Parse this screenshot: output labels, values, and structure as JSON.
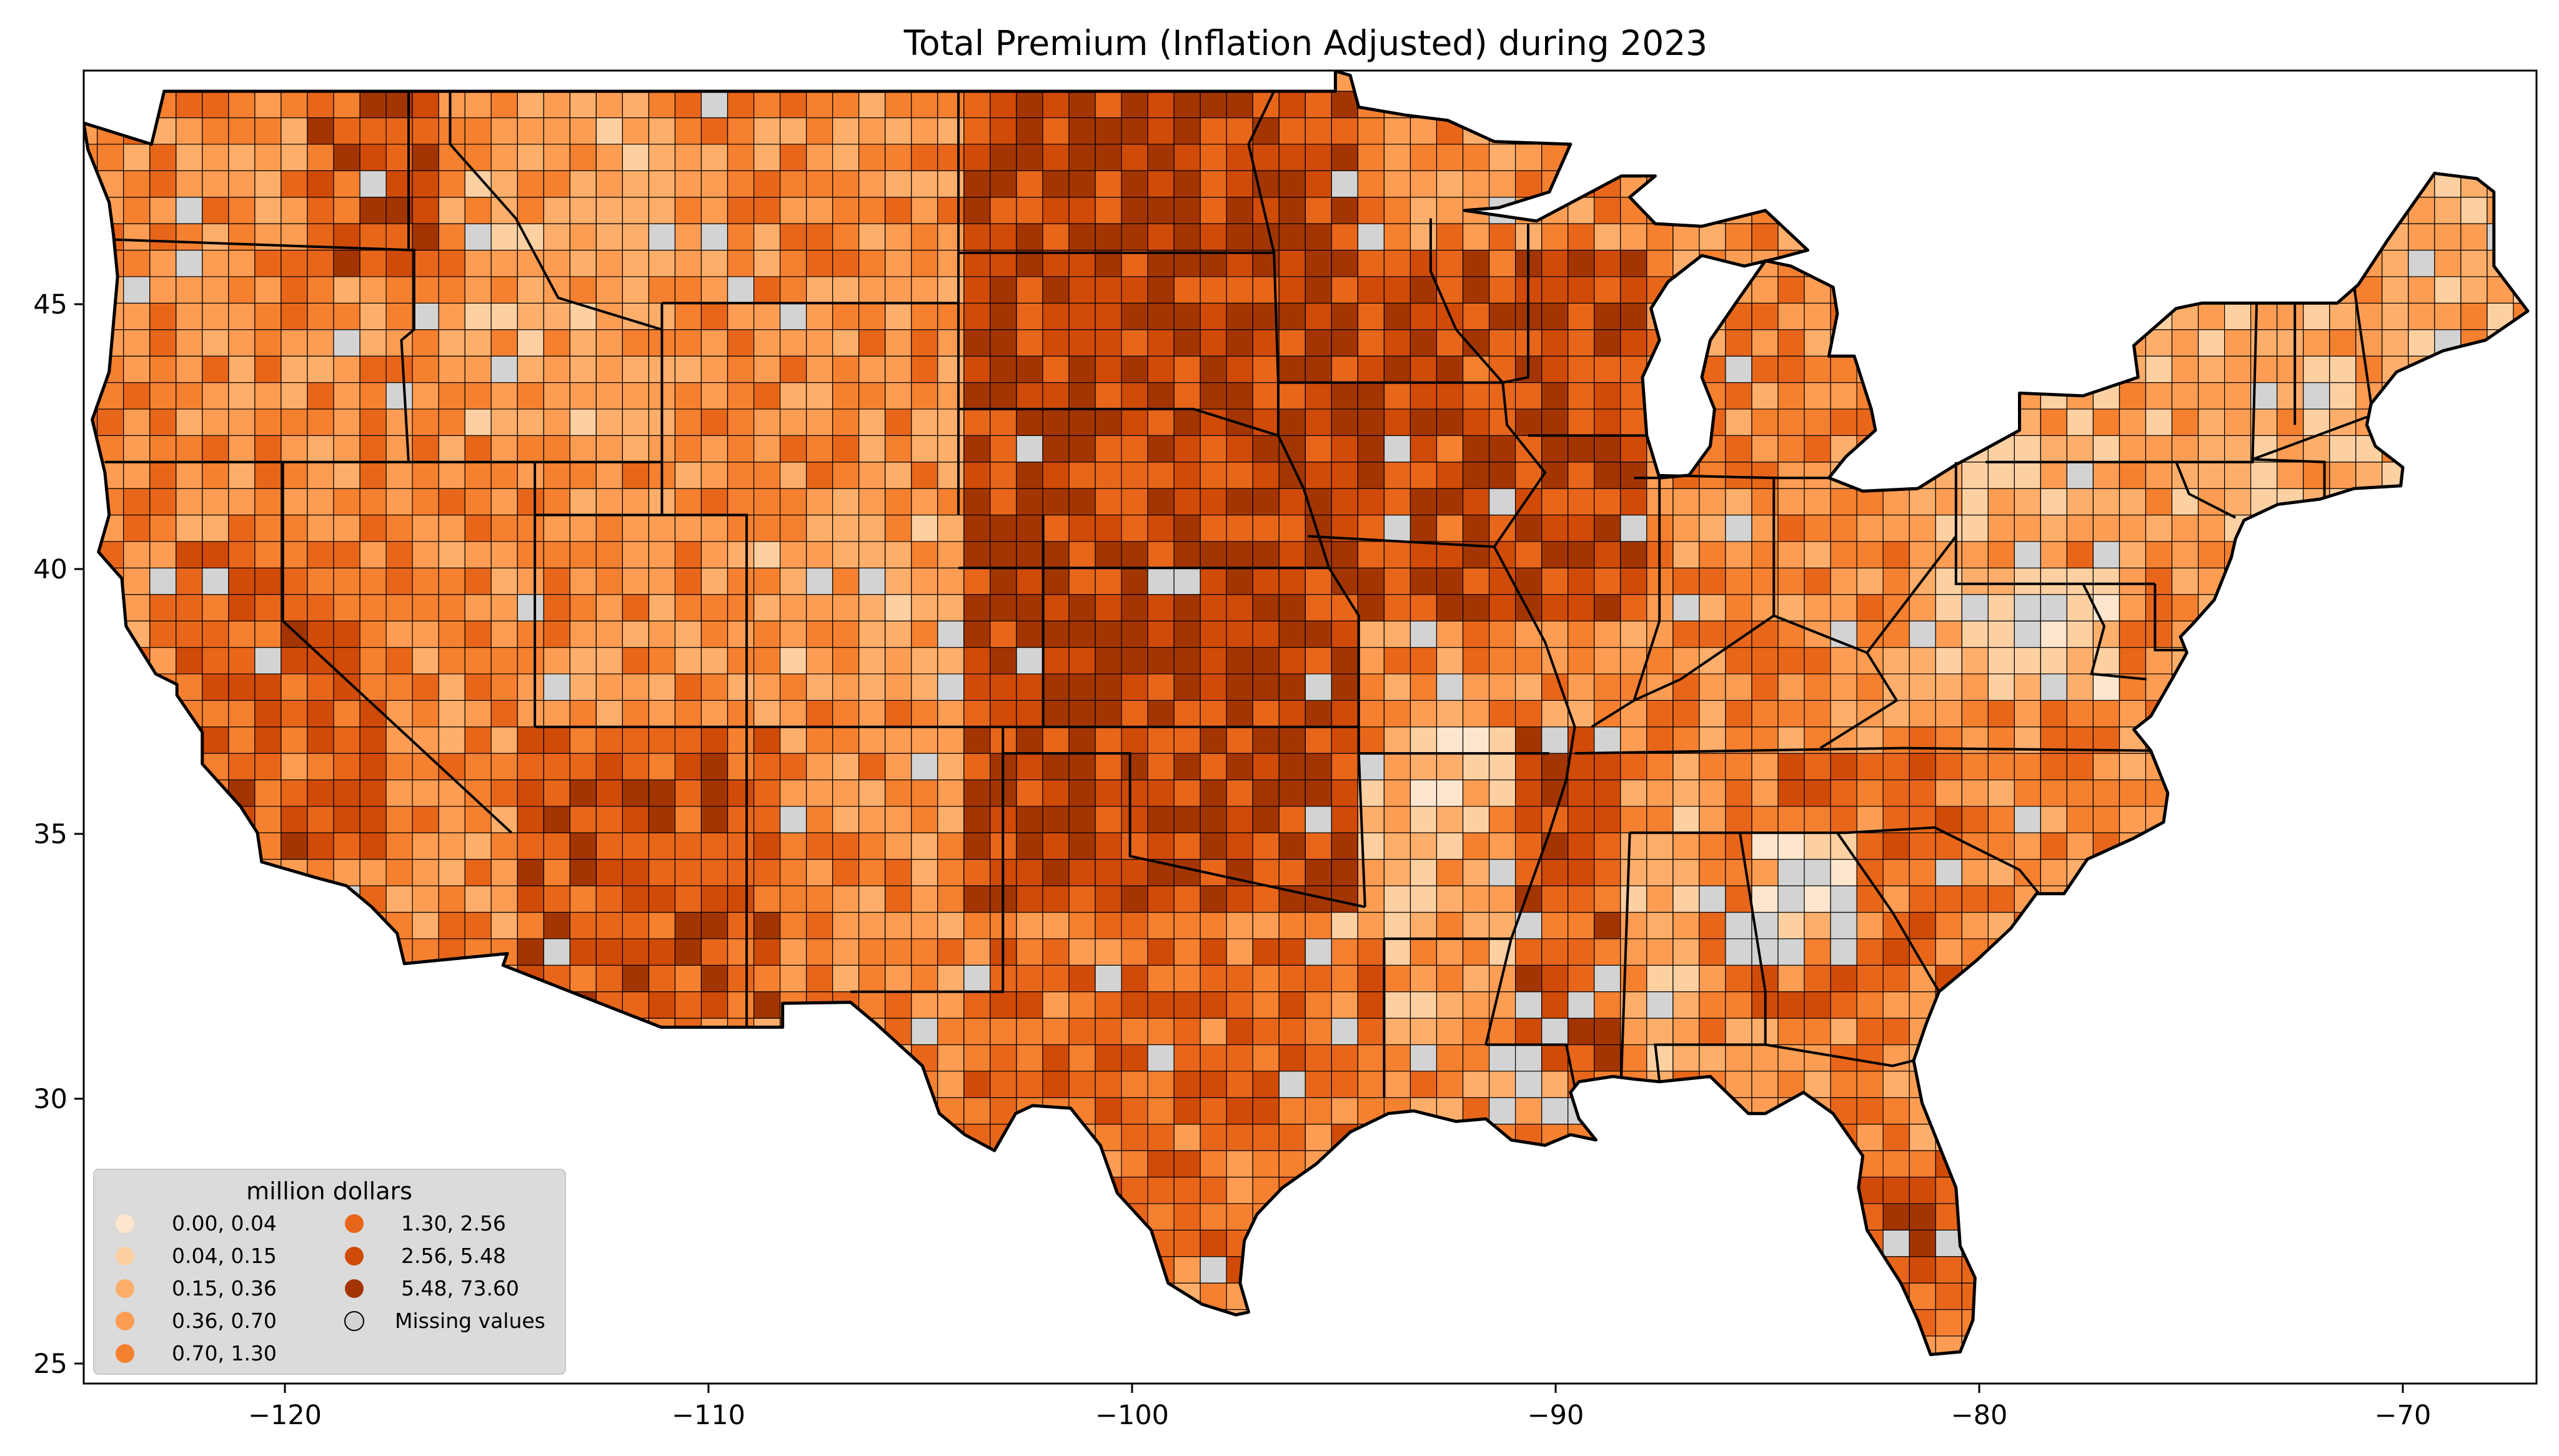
{
  "title": "Total  Premium  (Inflation Adjusted) during 2023",
  "x_ticks": [
    "−120",
    "−110",
    "−100",
    "−90",
    "−80",
    "−70"
  ],
  "y_ticks": [
    "45",
    "40",
    "35",
    "30",
    "25"
  ],
  "legend": {
    "title": "million dollars",
    "left_column": [
      {
        "label": "0.00,  0.04",
        "color": "#fee6ce"
      },
      {
        "label": "0.04,  0.15",
        "color": "#fdd0a2"
      },
      {
        "label": "0.15,  0.36",
        "color": "#fdae6b"
      },
      {
        "label": "0.36,  0.70",
        "color": "#fd9d53"
      },
      {
        "label": "0.70,  1.30",
        "color": "#f5802f"
      }
    ],
    "right_column": [
      {
        "label": "1.30,  2.56",
        "color": "#e8661a"
      },
      {
        "label": "2.56,  5.48",
        "color": "#d04a08"
      },
      {
        "label": "5.48, 73.60",
        "color": "#a33503"
      },
      {
        "label": "Missing values",
        "color": "#d3d3d3"
      }
    ]
  },
  "colors": {
    "missing": "#d3d3d3",
    "border": "#000000",
    "legend_bg": "#d9d9d9"
  }
}
